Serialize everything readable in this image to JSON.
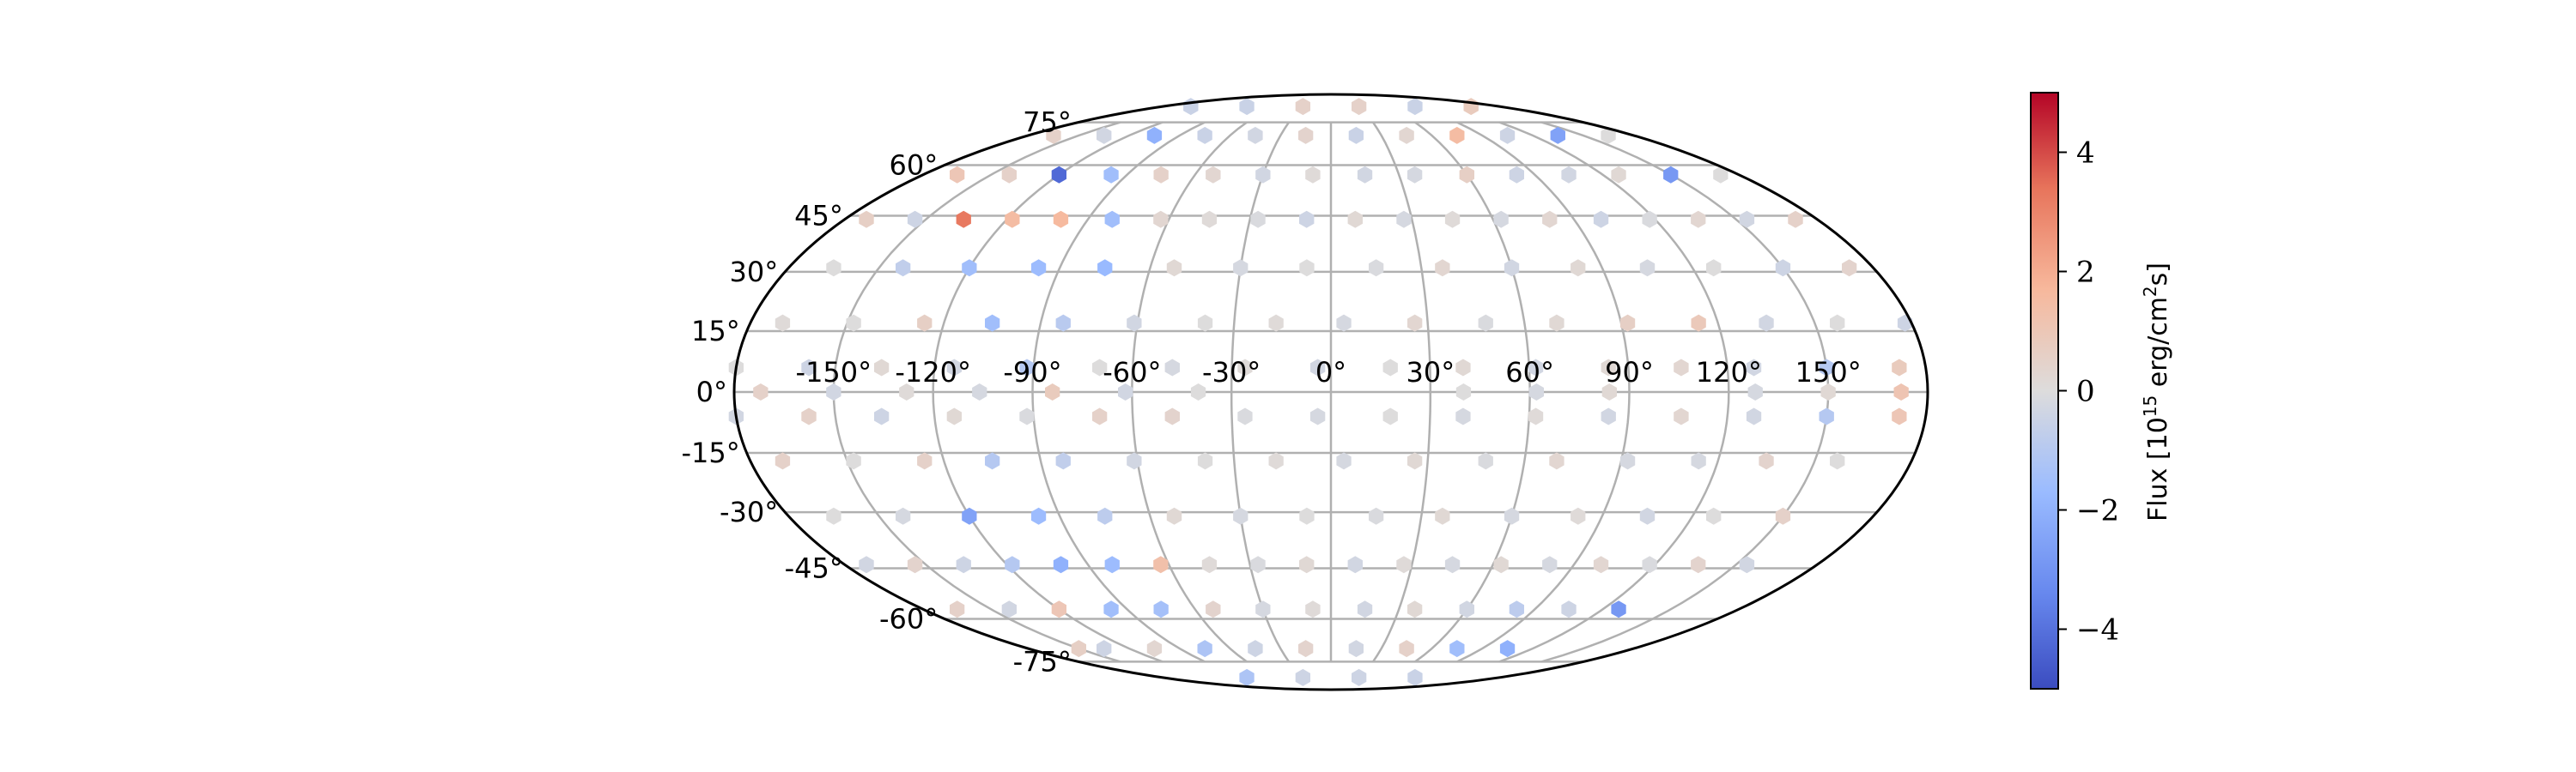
{
  "chart_data": {
    "type": "scatter",
    "projection": "mollweide",
    "title": "",
    "xlabel": "",
    "ylabel": "",
    "grid": true,
    "x_ticks": [
      "-150°",
      "-120°",
      "-90°",
      "-60°",
      "-30°",
      "0°",
      "30°",
      "60°",
      "90°",
      "120°",
      "150°"
    ],
    "y_ticks": [
      "75°",
      "60°",
      "45°",
      "30°",
      "15°",
      "0°",
      "-15°",
      "-30°",
      "-45°",
      "-60°",
      "-75°"
    ],
    "colorbar": {
      "label_prefix": "Flux [10",
      "label_sup": "15",
      "label_suffix": " erg/cm",
      "label_sup2": "2",
      "label_end": "s]",
      "range": [
        -5,
        5
      ],
      "ticks": [
        "4",
        "2",
        "0",
        "−2",
        "−4"
      ],
      "colormap": "coolwarm",
      "colors": [
        "#3b4cc0",
        "#7b9ff9",
        "#c0d4f5",
        "#dddcdc",
        "#f2cbb7",
        "#ee8468",
        "#b40426"
      ]
    },
    "points": [
      {
        "lon": -30,
        "lat": 82,
        "flux": 0.5
      },
      {
        "lon": 30,
        "lat": 82,
        "flux": 0.5
      },
      {
        "lon": -150,
        "lat": 82,
        "flux": -0.5
      },
      {
        "lon": 150,
        "lat": 82,
        "flux": 0.8
      },
      {
        "lon": -90,
        "lat": 82,
        "flux": -0.5
      },
      {
        "lon": 90,
        "lat": 82,
        "flux": -0.5
      },
      {
        "lon": -165,
        "lat": 70,
        "flux": 0.5
      },
      {
        "lon": -135,
        "lat": 70,
        "flux": -0.3
      },
      {
        "lon": -105,
        "lat": 70,
        "flux": -2.0
      },
      {
        "lon": -75,
        "lat": 70,
        "flux": -0.5
      },
      {
        "lon": -45,
        "lat": 70,
        "flux": -0.3
      },
      {
        "lon": -15,
        "lat": 70,
        "flux": 0.4
      },
      {
        "lon": 15,
        "lat": 70,
        "flux": -0.5
      },
      {
        "lon": 45,
        "lat": 70,
        "flux": 0.3
      },
      {
        "lon": 75,
        "lat": 70,
        "flux": 1.5
      },
      {
        "lon": 105,
        "lat": 70,
        "flux": -0.4
      },
      {
        "lon": 135,
        "lat": 70,
        "flux": -2.5
      },
      {
        "lon": 165,
        "lat": 70,
        "flux": 0.0
      },
      {
        "lon": -165,
        "lat": 57,
        "flux": 1.0
      },
      {
        "lon": -142,
        "lat": 57,
        "flux": 0.5
      },
      {
        "lon": -120,
        "lat": 57,
        "flux": -4.2
      },
      {
        "lon": -97,
        "lat": 57,
        "flux": -1.5
      },
      {
        "lon": -75,
        "lat": 57,
        "flux": 0.5
      },
      {
        "lon": -52,
        "lat": 57,
        "flux": 0.3
      },
      {
        "lon": -30,
        "lat": 57,
        "flux": -0.3
      },
      {
        "lon": -8,
        "lat": 57,
        "flux": 0.1
      },
      {
        "lon": 15,
        "lat": 57,
        "flux": -0.3
      },
      {
        "lon": 37,
        "lat": 57,
        "flux": -0.2
      },
      {
        "lon": 60,
        "lat": 57,
        "flux": 0.6
      },
      {
        "lon": 82,
        "lat": 57,
        "flux": -0.4
      },
      {
        "lon": 105,
        "lat": 57,
        "flux": -0.3
      },
      {
        "lon": 127,
        "lat": 57,
        "flux": 0.2
      },
      {
        "lon": 150,
        "lat": 57,
        "flux": -2.8
      },
      {
        "lon": 172,
        "lat": 57,
        "flux": 0.0
      },
      {
        "lon": -172,
        "lat": 44,
        "flux": 0.6
      },
      {
        "lon": -154,
        "lat": 44,
        "flux": -0.4
      },
      {
        "lon": -136,
        "lat": 44,
        "flux": 3.2
      },
      {
        "lon": -118,
        "lat": 44,
        "flux": 1.5
      },
      {
        "lon": -100,
        "lat": 44,
        "flux": 1.6
      },
      {
        "lon": -81,
        "lat": 44,
        "flux": -1.5
      },
      {
        "lon": -63,
        "lat": 44,
        "flux": 0.3
      },
      {
        "lon": -45,
        "lat": 44,
        "flux": 0.1
      },
      {
        "lon": -27,
        "lat": 44,
        "flux": -0.1
      },
      {
        "lon": -9,
        "lat": 44,
        "flux": -0.4
      },
      {
        "lon": 9,
        "lat": 44,
        "flux": 0.2
      },
      {
        "lon": 27,
        "lat": 44,
        "flux": -0.2
      },
      {
        "lon": 45,
        "lat": 44,
        "flux": 0.1
      },
      {
        "lon": 63,
        "lat": 44,
        "flux": -0.2
      },
      {
        "lon": 81,
        "lat": 44,
        "flux": 0.3
      },
      {
        "lon": 100,
        "lat": 44,
        "flux": -0.4
      },
      {
        "lon": 118,
        "lat": 44,
        "flux": -0.1
      },
      {
        "lon": 136,
        "lat": 44,
        "flux": 0.3
      },
      {
        "lon": 154,
        "lat": 44,
        "flux": -0.3
      },
      {
        "lon": 172,
        "lat": 44,
        "flux": 0.5
      },
      {
        "lon": -165,
        "lat": 31,
        "flux": 0.0
      },
      {
        "lon": -142,
        "lat": 31,
        "flux": -0.7
      },
      {
        "lon": -120,
        "lat": 31,
        "flux": -1.5
      },
      {
        "lon": -97,
        "lat": 31,
        "flux": -1.6
      },
      {
        "lon": -75,
        "lat": 31,
        "flux": -1.7
      },
      {
        "lon": -52,
        "lat": 31,
        "flux": 0.2
      },
      {
        "lon": -30,
        "lat": 31,
        "flux": -0.2
      },
      {
        "lon": -8,
        "lat": 31,
        "flux": 0.0
      },
      {
        "lon": 15,
        "lat": 31,
        "flux": -0.1
      },
      {
        "lon": 37,
        "lat": 31,
        "flux": 0.3
      },
      {
        "lon": 60,
        "lat": 31,
        "flux": -0.3
      },
      {
        "lon": 82,
        "lat": 31,
        "flux": 0.2
      },
      {
        "lon": 105,
        "lat": 31,
        "flux": -0.2
      },
      {
        "lon": 127,
        "lat": 31,
        "flux": 0.0
      },
      {
        "lon": 150,
        "lat": 31,
        "flux": -0.4
      },
      {
        "lon": 172,
        "lat": 31,
        "flux": 0.4
      },
      {
        "lon": -170,
        "lat": 17,
        "flux": 0.1
      },
      {
        "lon": -148,
        "lat": 17,
        "flux": 0.0
      },
      {
        "lon": -126,
        "lat": 17,
        "flux": 0.6
      },
      {
        "lon": -105,
        "lat": 17,
        "flux": -1.5
      },
      {
        "lon": -83,
        "lat": 17,
        "flux": -0.9
      },
      {
        "lon": -61,
        "lat": 17,
        "flux": -0.3
      },
      {
        "lon": -39,
        "lat": 17,
        "flux": 0.0
      },
      {
        "lon": -17,
        "lat": 17,
        "flux": 0.1
      },
      {
        "lon": 4,
        "lat": 17,
        "flux": -0.2
      },
      {
        "lon": 26,
        "lat": 17,
        "flux": 0.3
      },
      {
        "lon": 48,
        "lat": 17,
        "flux": -0.1
      },
      {
        "lon": 70,
        "lat": 17,
        "flux": 0.2
      },
      {
        "lon": 92,
        "lat": 17,
        "flux": 0.6
      },
      {
        "lon": 114,
        "lat": 17,
        "flux": 0.9
      },
      {
        "lon": 135,
        "lat": 17,
        "flux": -0.3
      },
      {
        "lon": 157,
        "lat": 17,
        "flux": 0.0
      },
      {
        "lon": 178,
        "lat": 17,
        "flux": -0.4
      },
      {
        "lon": -180,
        "lat": 6,
        "flux": 0.0
      },
      {
        "lon": -158,
        "lat": 6,
        "flux": -0.4
      },
      {
        "lon": -136,
        "lat": 6,
        "flux": 0.2
      },
      {
        "lon": -114,
        "lat": 6,
        "flux": -0.3
      },
      {
        "lon": -92,
        "lat": 6,
        "flux": -1.0
      },
      {
        "lon": -70,
        "lat": 6,
        "flux": 0.0
      },
      {
        "lon": -48,
        "lat": 6,
        "flux": -0.2
      },
      {
        "lon": -26,
        "lat": 6,
        "flux": 0.1
      },
      {
        "lon": -4,
        "lat": 6,
        "flux": -0.3
      },
      {
        "lon": 18,
        "lat": 6,
        "flux": 0.0
      },
      {
        "lon": 40,
        "lat": 6,
        "flux": 0.2
      },
      {
        "lon": 62,
        "lat": 6,
        "flux": -0.3
      },
      {
        "lon": 84,
        "lat": 6,
        "flux": 0.2
      },
      {
        "lon": 106,
        "lat": 6,
        "flux": 0.3
      },
      {
        "lon": 128,
        "lat": 6,
        "flux": -0.3
      },
      {
        "lon": 150,
        "lat": 6,
        "flux": -1.0
      },
      {
        "lon": 172,
        "lat": 6,
        "flux": 0.8
      },
      {
        "lon": -172,
        "lat": 0,
        "flux": 0.5
      },
      {
        "lon": -150,
        "lat": 0,
        "flux": -0.3
      },
      {
        "lon": -128,
        "lat": 0,
        "flux": 0.1
      },
      {
        "lon": -106,
        "lat": 0,
        "flux": -0.2
      },
      {
        "lon": -84,
        "lat": 0,
        "flux": 0.8
      },
      {
        "lon": -62,
        "lat": 0,
        "flux": -0.3
      },
      {
        "lon": -40,
        "lat": 0,
        "flux": 0.0
      },
      {
        "lon": 40,
        "lat": 0,
        "flux": 0.0
      },
      {
        "lon": 62,
        "lat": 0,
        "flux": -0.2
      },
      {
        "lon": 84,
        "lat": 0,
        "flux": 0.2
      },
      {
        "lon": 128,
        "lat": 0,
        "flux": -0.2
      },
      {
        "lon": 150,
        "lat": 0,
        "flux": 0.2
      },
      {
        "lon": 172,
        "lat": 0,
        "flux": 1.1
      },
      {
        "lon": -180,
        "lat": -6,
        "flux": -0.3
      },
      {
        "lon": -158,
        "lat": -6,
        "flux": 0.5
      },
      {
        "lon": -136,
        "lat": -6,
        "flux": -0.4
      },
      {
        "lon": -114,
        "lat": -6,
        "flux": 0.2
      },
      {
        "lon": -92,
        "lat": -6,
        "flux": -0.1
      },
      {
        "lon": -70,
        "lat": -6,
        "flux": 0.5
      },
      {
        "lon": -48,
        "lat": -6,
        "flux": 0.4
      },
      {
        "lon": -26,
        "lat": -6,
        "flux": -0.1
      },
      {
        "lon": -4,
        "lat": -6,
        "flux": -0.2
      },
      {
        "lon": 18,
        "lat": -6,
        "flux": 0.0
      },
      {
        "lon": 40,
        "lat": -6,
        "flux": -0.2
      },
      {
        "lon": 62,
        "lat": -6,
        "flux": 0.1
      },
      {
        "lon": 84,
        "lat": -6,
        "flux": -0.3
      },
      {
        "lon": 106,
        "lat": -6,
        "flux": 0.3
      },
      {
        "lon": 128,
        "lat": -6,
        "flux": -0.3
      },
      {
        "lon": 150,
        "lat": -6,
        "flux": -1.0
      },
      {
        "lon": 172,
        "lat": -6,
        "flux": 1.0
      },
      {
        "lon": -170,
        "lat": -17,
        "flux": 0.5
      },
      {
        "lon": -148,
        "lat": -17,
        "flux": 0.0
      },
      {
        "lon": -126,
        "lat": -17,
        "flux": 0.5
      },
      {
        "lon": -105,
        "lat": -17,
        "flux": -1.0
      },
      {
        "lon": -83,
        "lat": -17,
        "flux": -0.7
      },
      {
        "lon": -61,
        "lat": -17,
        "flux": -0.3
      },
      {
        "lon": -39,
        "lat": -17,
        "flux": 0.0
      },
      {
        "lon": -17,
        "lat": -17,
        "flux": 0.1
      },
      {
        "lon": 4,
        "lat": -17,
        "flux": -0.2
      },
      {
        "lon": 26,
        "lat": -17,
        "flux": 0.2
      },
      {
        "lon": 48,
        "lat": -17,
        "flux": -0.1
      },
      {
        "lon": 70,
        "lat": -17,
        "flux": 0.3
      },
      {
        "lon": 92,
        "lat": -17,
        "flux": -0.2
      },
      {
        "lon": 114,
        "lat": -17,
        "flux": -0.2
      },
      {
        "lon": 135,
        "lat": -17,
        "flux": 0.4
      },
      {
        "lon": 157,
        "lat": -17,
        "flux": 0.0
      },
      {
        "lon": -165,
        "lat": -31,
        "flux": 0.0
      },
      {
        "lon": -142,
        "lat": -31,
        "flux": -0.2
      },
      {
        "lon": -120,
        "lat": -31,
        "flux": -2.5
      },
      {
        "lon": -97,
        "lat": -31,
        "flux": -1.6
      },
      {
        "lon": -75,
        "lat": -31,
        "flux": -0.8
      },
      {
        "lon": -52,
        "lat": -31,
        "flux": 0.2
      },
      {
        "lon": -30,
        "lat": -31,
        "flux": -0.2
      },
      {
        "lon": -8,
        "lat": -31,
        "flux": 0.0
      },
      {
        "lon": 15,
        "lat": -31,
        "flux": -0.1
      },
      {
        "lon": 37,
        "lat": -31,
        "flux": 0.2
      },
      {
        "lon": 60,
        "lat": -31,
        "flux": -0.2
      },
      {
        "lon": 82,
        "lat": -31,
        "flux": 0.1
      },
      {
        "lon": 105,
        "lat": -31,
        "flux": -0.3
      },
      {
        "lon": 127,
        "lat": -31,
        "flux": 0.0
      },
      {
        "lon": 150,
        "lat": -31,
        "flux": 0.5
      },
      {
        "lon": -172,
        "lat": -44,
        "flux": -0.3
      },
      {
        "lon": -154,
        "lat": -44,
        "flux": 0.4
      },
      {
        "lon": -136,
        "lat": -44,
        "flux": -0.4
      },
      {
        "lon": -118,
        "lat": -44,
        "flux": -1.0
      },
      {
        "lon": -100,
        "lat": -44,
        "flux": -2.0
      },
      {
        "lon": -81,
        "lat": -44,
        "flux": -1.6
      },
      {
        "lon": -63,
        "lat": -44,
        "flux": 1.3
      },
      {
        "lon": -45,
        "lat": -44,
        "flux": 0.1
      },
      {
        "lon": -27,
        "lat": -44,
        "flux": -0.1
      },
      {
        "lon": -9,
        "lat": -44,
        "flux": 0.2
      },
      {
        "lon": 9,
        "lat": -44,
        "flux": -0.3
      },
      {
        "lon": 27,
        "lat": -44,
        "flux": 0.1
      },
      {
        "lon": 45,
        "lat": -44,
        "flux": -0.2
      },
      {
        "lon": 63,
        "lat": -44,
        "flux": 0.2
      },
      {
        "lon": 81,
        "lat": -44,
        "flux": -0.2
      },
      {
        "lon": 100,
        "lat": -44,
        "flux": 0.3
      },
      {
        "lon": 118,
        "lat": -44,
        "flux": -0.1
      },
      {
        "lon": 136,
        "lat": -44,
        "flux": 0.4
      },
      {
        "lon": 154,
        "lat": -44,
        "flux": -0.3
      },
      {
        "lon": -165,
        "lat": -57,
        "flux": 0.5
      },
      {
        "lon": -142,
        "lat": -57,
        "flux": -0.3
      },
      {
        "lon": -120,
        "lat": -57,
        "flux": 1.0
      },
      {
        "lon": -97,
        "lat": -57,
        "flux": -1.5
      },
      {
        "lon": -75,
        "lat": -57,
        "flux": -1.4
      },
      {
        "lon": -52,
        "lat": -57,
        "flux": 0.4
      },
      {
        "lon": -30,
        "lat": -57,
        "flux": -0.2
      },
      {
        "lon": -8,
        "lat": -57,
        "flux": 0.1
      },
      {
        "lon": 15,
        "lat": -57,
        "flux": -0.3
      },
      {
        "lon": 37,
        "lat": -57,
        "flux": 0.2
      },
      {
        "lon": 60,
        "lat": -57,
        "flux": -0.3
      },
      {
        "lon": 82,
        "lat": -57,
        "flux": -0.8
      },
      {
        "lon": 105,
        "lat": -57,
        "flux": -0.4
      },
      {
        "lon": 127,
        "lat": -57,
        "flux": -2.8
      },
      {
        "lon": -150,
        "lat": -70,
        "flux": 0.6
      },
      {
        "lon": -105,
        "lat": -70,
        "flux": 0.3
      },
      {
        "lon": -75,
        "lat": -70,
        "flux": -1.2
      },
      {
        "lon": -45,
        "lat": -70,
        "flux": -0.4
      },
      {
        "lon": -15,
        "lat": -70,
        "flux": 0.4
      },
      {
        "lon": 15,
        "lat": -70,
        "flux": -0.3
      },
      {
        "lon": 45,
        "lat": -70,
        "flux": 0.5
      },
      {
        "lon": 75,
        "lat": -70,
        "flux": -1.5
      },
      {
        "lon": 105,
        "lat": -70,
        "flux": -2.0
      },
      {
        "lon": -135,
        "lat": -70,
        "flux": -0.4
      },
      {
        "lon": -30,
        "lat": -82,
        "flux": -0.4
      },
      {
        "lon": 30,
        "lat": -82,
        "flux": -0.4
      },
      {
        "lon": -90,
        "lat": -82,
        "flux": -1.2
      },
      {
        "lon": 90,
        "lat": -82,
        "flux": -0.5
      }
    ]
  }
}
